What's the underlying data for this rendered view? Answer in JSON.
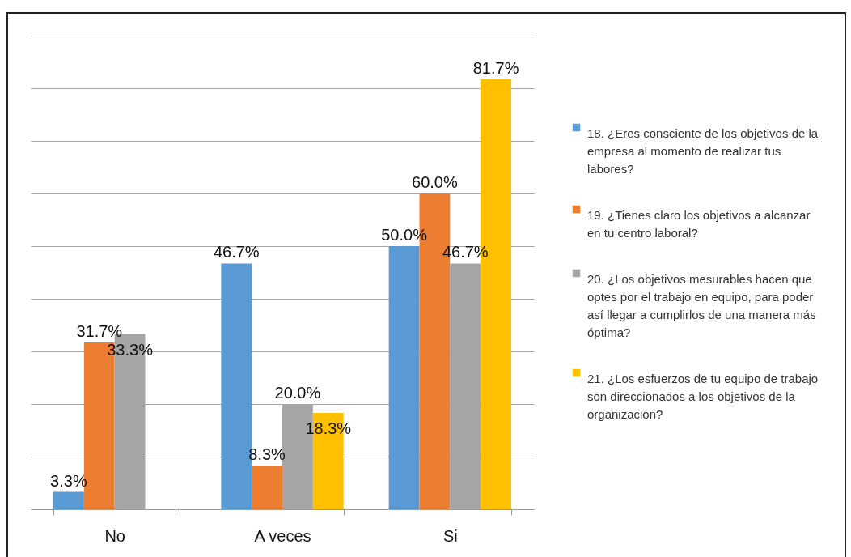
{
  "chart_data": {
    "type": "bar",
    "categories": [
      "No",
      "A veces",
      "Si"
    ],
    "series": [
      {
        "name": "18. ¿Eres consciente de los objetivos de la empresa al momento de realizar tus labores?",
        "color": "#5b9bd5",
        "values": [
          3.3,
          46.7,
          50.0
        ],
        "value_labels": [
          "3.3%",
          "46.7%",
          "50.0%"
        ]
      },
      {
        "name": "19. ¿Tienes claro los objetivos a alcanzar en tu centro laboral?",
        "color": "#ed7d31",
        "values": [
          31.7,
          8.3,
          60.0
        ],
        "value_labels": [
          "31.7%",
          "8.3%",
          "60.0%"
        ]
      },
      {
        "name": "20. ¿Los objetivos mesurables hacen que optes por el trabajo en equipo, para poder así llegar a cumplirlos de una manera más óptima?",
        "color": "#a5a5a5",
        "values": [
          33.3,
          20.0,
          46.7
        ],
        "value_labels": [
          "33.3%",
          "20.0%",
          "46.7%"
        ]
      },
      {
        "name": "21. ¿Los esfuerzos de tu equipo de trabajo son direccionados a los objetivos de la organización?",
        "color": "#ffc000",
        "values": [
          null,
          18.3,
          81.7
        ],
        "value_labels": [
          null,
          "18.3%",
          "81.7%"
        ]
      }
    ],
    "ylim": [
      0,
      90
    ],
    "yticks": [
      {
        "value": 0,
        "label": null
      },
      {
        "value": 10,
        "label": null
      },
      {
        "value": 20,
        "label": null
      },
      {
        "value": 30,
        "label": null
      },
      {
        "value": 40,
        "label": null
      },
      {
        "value": 50,
        "label": null
      },
      {
        "value": 60,
        "label": null
      },
      {
        "value": 70,
        "label": null
      },
      {
        "value": 80,
        "label": null
      },
      {
        "value": 90,
        "label": null
      }
    ],
    "grid": "y",
    "tick_labels": "x",
    "legend": "right"
  }
}
